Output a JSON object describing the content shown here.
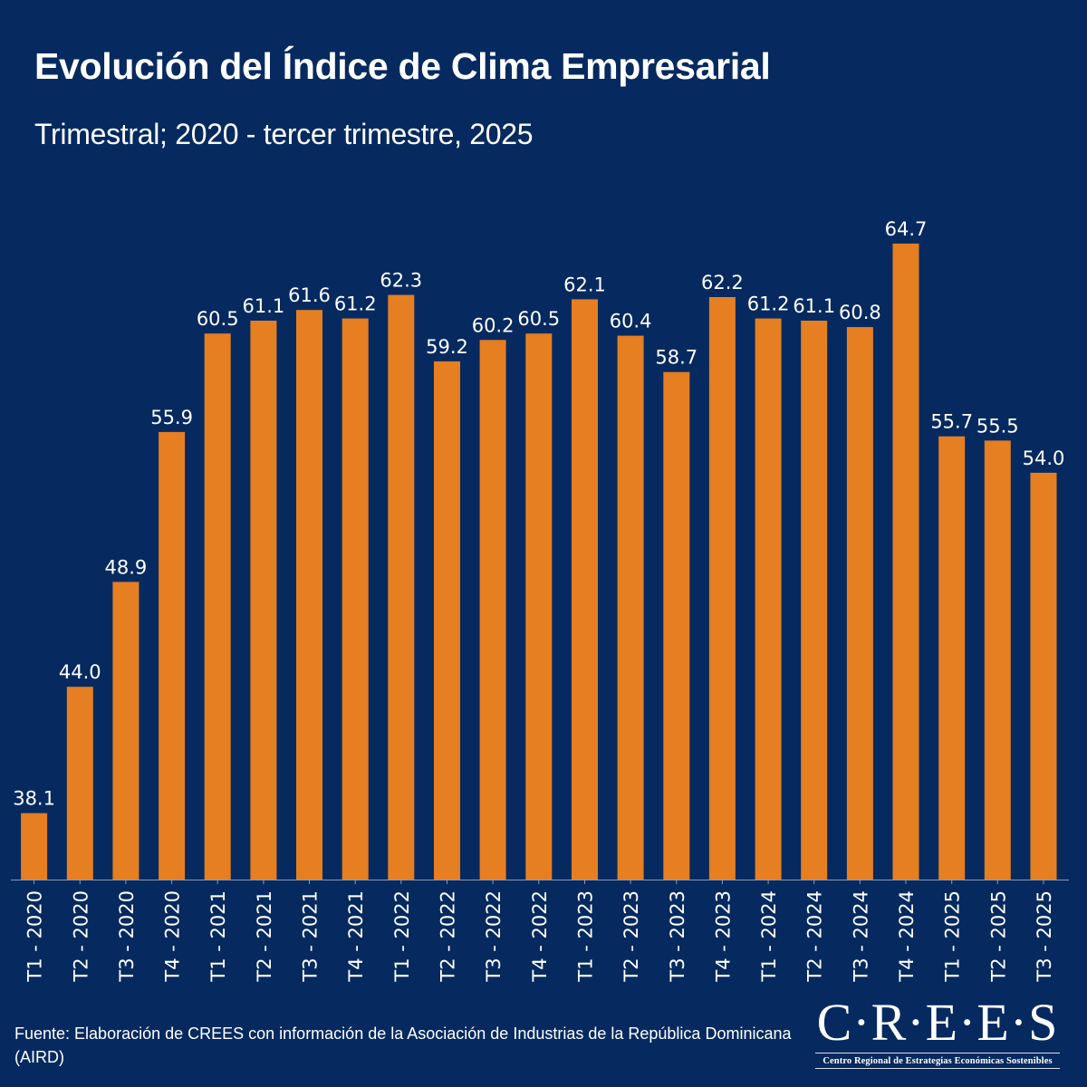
{
  "header": {
    "title": "Evolución del Índice de Clima Empresarial",
    "subtitle": "Trimestral; 2020 - tercer trimestre, 2025"
  },
  "colors": {
    "background": "#062a5f",
    "bar": "#e67e22",
    "text": "#ffffff",
    "axis": "#8a9bb8"
  },
  "chart_data": {
    "type": "bar",
    "title": "Evolución del Índice de Clima Empresarial",
    "subtitle": "Trimestral; 2020 - tercer trimestre, 2025",
    "xlabel": "",
    "ylabel": "",
    "categories": [
      "T1 - 2020",
      "T2 - 2020",
      "T3 - 2020",
      "T4 - 2020",
      "T1 - 2021",
      "T2 - 2021",
      "T3 - 2021",
      "T4 - 2021",
      "T1 - 2022",
      "T2 - 2022",
      "T3 - 2022",
      "T4 - 2022",
      "T1 - 2023",
      "T2 - 2023",
      "T3 - 2023",
      "T4 - 2023",
      "T1 - 2024",
      "T2 - 2024",
      "T3 - 2024",
      "T4 - 2024",
      "T1 - 2025",
      "T2 - 2025",
      "T3 - 2025"
    ],
    "values": [
      38.1,
      44.0,
      48.9,
      55.9,
      60.5,
      61.1,
      61.6,
      61.2,
      62.3,
      59.2,
      60.2,
      60.5,
      62.1,
      60.4,
      58.7,
      62.2,
      61.2,
      61.1,
      60.8,
      64.7,
      55.7,
      55.5,
      54.0
    ],
    "value_labels": [
      "38.1",
      "44.0",
      "48.9",
      "55.9",
      "60.5",
      "61.1",
      "61.6",
      "61.2",
      "62.3",
      "59.2",
      "60.2",
      "60.5",
      "62.1",
      "60.4",
      "58.7",
      "62.2",
      "61.2",
      "61.1",
      "60.8",
      "64.7",
      "55.7",
      "55.5",
      "54.0"
    ],
    "ylim": [
      35,
      65.5
    ],
    "grid": false,
    "legend": "none",
    "y_axis_visible": false
  },
  "footer": {
    "source": "Fuente: Elaboración de CREES con información de la Asociación de Industrias de la República Dominicana (AIRD)",
    "logo_mark": "C·R·E·E·S",
    "logo_subtitle": "Centro Regional de Estrategias Económicas Sostenibles"
  }
}
